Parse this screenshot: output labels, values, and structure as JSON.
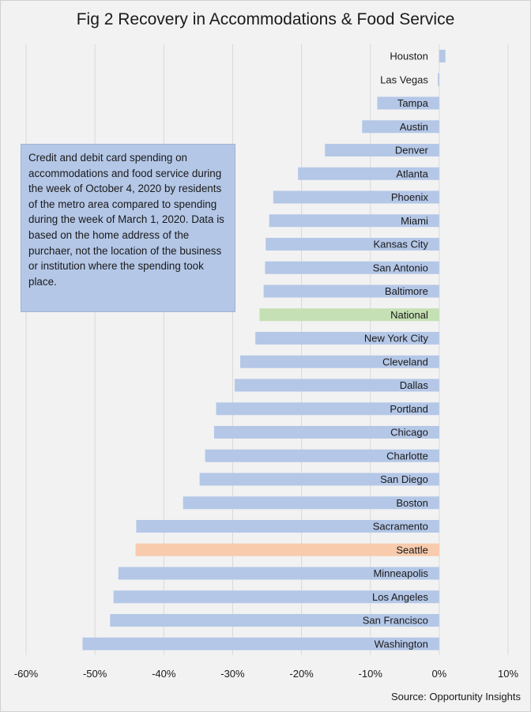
{
  "chart_data": {
    "type": "bar",
    "orientation": "horizontal",
    "title": "Fig 2 Recovery in Accommodations & Food Service",
    "note": "Credit and debit card spending on accommodations and food service during the week of October 4, 2020 by residents of the metro area compared to spending during the week of March 1, 2020. Data is based on the home address of the purchaer, not the location of the business or institution where the spending took place.",
    "source": "Source: Opportunity Insights",
    "categories": [
      "Houston",
      "Las Vegas",
      "Tampa",
      "Austin",
      "Denver",
      "Atlanta",
      "Phoenix",
      "Miami",
      "Kansas City",
      "San Antonio",
      "Baltimore",
      "National",
      "New York City",
      "Cleveland",
      "Dallas",
      "Portland",
      "Chicago",
      "Charlotte",
      "San Diego",
      "Boston",
      "Sacramento",
      "Seattle",
      "Minneapolis",
      "Los Angeles",
      "San Francisco",
      "Washington"
    ],
    "values": [
      0.9,
      -0.2,
      -9.0,
      -11.2,
      -16.6,
      -20.5,
      -24.1,
      -24.7,
      -25.2,
      -25.3,
      -25.5,
      -26.1,
      -26.7,
      -28.9,
      -29.7,
      -32.4,
      -32.7,
      -34.0,
      -34.8,
      -37.2,
      -44.0,
      -44.1,
      -46.6,
      -47.3,
      -47.8,
      -51.8
    ],
    "value_format": "percent",
    "xlim": [
      -60,
      10
    ],
    "xticks": [
      -60,
      -50,
      -40,
      -30,
      -20,
      -10,
      0,
      10
    ],
    "xtick_labels": [
      "-60%",
      "-50%",
      "-40%",
      "-30%",
      "-20%",
      "-10%",
      "0%",
      "10%"
    ],
    "grid": "vertical",
    "legend": "none",
    "colors": {
      "default": "#b4c7e7",
      "National": "#c5e0b4",
      "Seattle": "#f8cbad",
      "gridline": "#d9d9d9",
      "background": "#f2f2f2"
    }
  }
}
